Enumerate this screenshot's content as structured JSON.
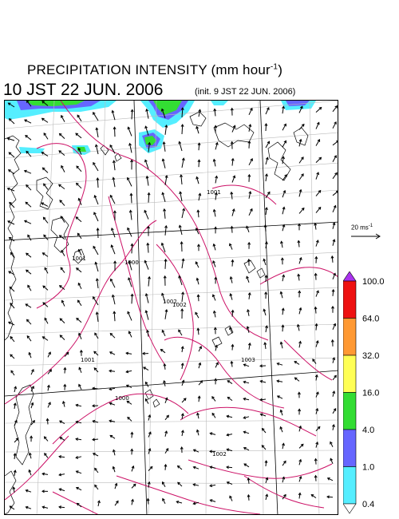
{
  "header": {
    "title_main": "PRECIPITATION INTENSITY (mm hour",
    "title_exp": "-1",
    "title_close": ")",
    "valid_time": "10 JST 22 JUN. 2006",
    "init_time": "(init. 9 JST 22 JUN. 2006)"
  },
  "wind_reference": {
    "label_main": "20 ms",
    "label_exp": "-1"
  },
  "isobar_labels": [
    "1001",
    "1000",
    "1002",
    "1003",
    "1002",
    "1001",
    "1001",
    "1002",
    "1000"
  ],
  "colorbar": {
    "levels": [
      "100.0",
      "64.0",
      "32.0",
      "16.0",
      "4.0",
      "1.0",
      "0.4"
    ],
    "colors": [
      "#ee1111",
      "#ff9933",
      "#ffff55",
      "#33dd33",
      "#6666ff",
      "#55eeff"
    ],
    "top_triangle_color": "#aa33ee",
    "bottom_triangle_color": "#ffffff"
  },
  "colors": {
    "isobar": "#cc1166",
    "coast": "#000000",
    "grid": "#bbbbbb",
    "rain_light": "#55eeff",
    "rain_moderate": "#6666ff",
    "rain_heavy": "#33dd33"
  }
}
